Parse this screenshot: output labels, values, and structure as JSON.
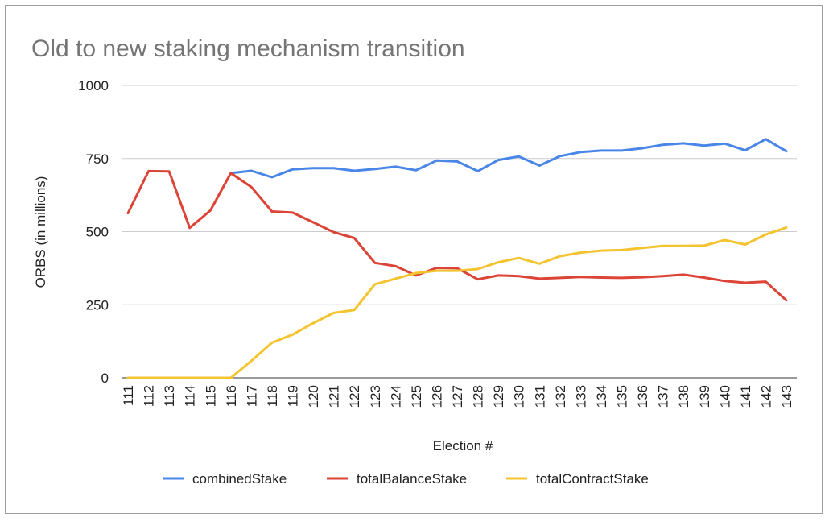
{
  "chart_data": {
    "type": "line",
    "title": "Old to new staking mechanism transition",
    "xlabel": "Election #",
    "ylabel": "ORBS (in millions)",
    "ylim": [
      0,
      1000
    ],
    "yticks": [
      "0",
      "250",
      "500",
      "750",
      "1000"
    ],
    "grid": true,
    "legend_position": "bottom",
    "x": [
      "111",
      "112",
      "113",
      "114",
      "115",
      "116",
      "117",
      "118",
      "119",
      "120",
      "121",
      "122",
      "123",
      "124",
      "125",
      "126",
      "127",
      "128",
      "129",
      "130",
      "131",
      "132",
      "133",
      "134",
      "135",
      "136",
      "137",
      "138",
      "139",
      "140",
      "141",
      "142",
      "143"
    ],
    "series": [
      {
        "name": "combinedStake",
        "color": "#4a86e8",
        "values": [
          null,
          null,
          null,
          null,
          null,
          700,
          708,
          686,
          713,
          717,
          717,
          708,
          714,
          722,
          710,
          743,
          740,
          707,
          745,
          757,
          726,
          758,
          772,
          777,
          777,
          785,
          797,
          802,
          794,
          801,
          778,
          816,
          775
        ]
      },
      {
        "name": "totalBalanceStake",
        "color": "#db4437",
        "values": [
          563,
          707,
          706,
          513,
          572,
          700,
          652,
          569,
          565,
          532,
          498,
          478,
          393,
          382,
          350,
          376,
          375,
          337,
          350,
          348,
          339,
          342,
          345,
          343,
          342,
          344,
          348,
          353,
          343,
          331,
          325,
          329,
          265
        ]
      },
      {
        "name": "totalContractStake",
        "color": "#f4c430",
        "values": [
          0,
          0,
          0,
          0,
          0,
          0,
          58,
          120,
          148,
          187,
          222,
          232,
          320,
          339,
          358,
          366,
          366,
          372,
          395,
          410,
          390,
          416,
          428,
          435,
          437,
          444,
          451,
          451,
          452,
          471,
          456,
          490,
          514
        ]
      }
    ]
  }
}
